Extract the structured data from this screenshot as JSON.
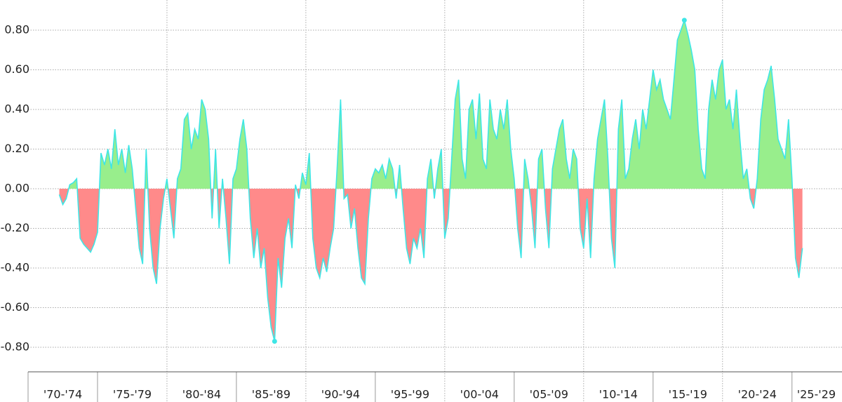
{
  "chart_data": {
    "type": "area",
    "x": [
      1972.25,
      1972.5,
      1972.75,
      1973,
      1973.25,
      1973.5,
      1973.75,
      1974,
      1974.25,
      1974.5,
      1974.75,
      1975,
      1975.25,
      1975.5,
      1975.75,
      1976,
      1976.25,
      1976.5,
      1976.75,
      1977,
      1977.25,
      1977.5,
      1977.75,
      1978,
      1978.25,
      1978.5,
      1978.75,
      1979,
      1979.25,
      1979.5,
      1979.75,
      1980,
      1980.25,
      1980.5,
      1980.75,
      1981,
      1981.25,
      1981.5,
      1981.75,
      1982,
      1982.25,
      1982.5,
      1982.75,
      1983,
      1983.25,
      1983.5,
      1983.75,
      1984,
      1984.25,
      1984.5,
      1984.75,
      1985,
      1985.25,
      1985.5,
      1985.75,
      1986,
      1986.25,
      1986.5,
      1986.75,
      1987,
      1987.25,
      1987.5,
      1987.75,
      1988,
      1988.25,
      1988.5,
      1988.75,
      1989,
      1989.25,
      1989.5,
      1989.75,
      1990,
      1990.25,
      1990.5,
      1990.75,
      1991,
      1991.25,
      1991.5,
      1991.75,
      1992,
      1992.25,
      1992.5,
      1992.75,
      1993,
      1993.25,
      1993.5,
      1993.75,
      1994,
      1994.25,
      1994.5,
      1994.75,
      1995,
      1995.25,
      1995.5,
      1995.75,
      1996,
      1996.25,
      1996.5,
      1996.75,
      1997,
      1997.25,
      1997.5,
      1997.75,
      1998,
      1998.25,
      1998.5,
      1998.75,
      1999,
      1999.25,
      1999.5,
      1999.75,
      2000,
      2000.25,
      2000.5,
      2000.75,
      2001,
      2001.25,
      2001.5,
      2001.75,
      2002,
      2002.25,
      2002.5,
      2002.75,
      2003,
      2003.25,
      2003.5,
      2003.75,
      2004,
      2004.25,
      2004.5,
      2004.75,
      2005,
      2005.25,
      2005.5,
      2005.75,
      2006,
      2006.25,
      2006.5,
      2006.75,
      2007,
      2007.25,
      2007.5,
      2007.75,
      2008,
      2008.25,
      2008.5,
      2008.75,
      2009,
      2009.25,
      2009.5,
      2009.75,
      2010,
      2010.25,
      2010.5,
      2010.75,
      2011,
      2011.25,
      2011.5,
      2011.75,
      2012,
      2012.25,
      2012.5,
      2012.75,
      2013,
      2013.25,
      2013.5,
      2013.75,
      2014,
      2014.25,
      2014.5,
      2014.75,
      2015,
      2015.25,
      2015.5,
      2015.75,
      2016,
      2016.25,
      2016.5,
      2016.75,
      2017,
      2017.25,
      2017.5,
      2017.75,
      2018,
      2018.25,
      2018.5,
      2018.75,
      2019,
      2019.25,
      2019.5,
      2019.75,
      2020,
      2020.25,
      2020.5,
      2020.75,
      2021,
      2021.25,
      2021.5,
      2021.75,
      2022,
      2022.25,
      2022.5,
      2022.75,
      2023,
      2023.25,
      2023.5,
      2023.75,
      2024,
      2024.25,
      2024.5,
      2024.75,
      2025,
      2025.25,
      2025.5,
      2025.75
    ],
    "values": [
      -0.03,
      -0.08,
      -0.05,
      0.02,
      0.03,
      0.05,
      -0.25,
      -0.28,
      -0.3,
      -0.32,
      -0.28,
      -0.22,
      0.18,
      0.12,
      0.2,
      0.1,
      0.3,
      0.12,
      0.2,
      0.08,
      0.22,
      0.1,
      -0.1,
      -0.3,
      -0.38,
      0.2,
      -0.2,
      -0.4,
      -0.48,
      -0.2,
      -0.05,
      0.05,
      -0.1,
      -0.25,
      0.05,
      0.1,
      0.35,
      0.38,
      0.2,
      0.3,
      0.25,
      0.45,
      0.4,
      0.25,
      -0.15,
      0.2,
      -0.2,
      0.05,
      -0.15,
      -0.38,
      0.05,
      0.1,
      0.25,
      0.35,
      0.2,
      -0.15,
      -0.35,
      -0.2,
      -0.4,
      -0.3,
      -0.55,
      -0.7,
      -0.77,
      -0.35,
      -0.5,
      -0.25,
      -0.15,
      -0.3,
      0.02,
      -0.05,
      0.08,
      0.02,
      0.18,
      -0.25,
      -0.4,
      -0.45,
      -0.35,
      -0.42,
      -0.3,
      -0.2,
      0.1,
      0.45,
      -0.05,
      -0.03,
      -0.2,
      -0.1,
      -0.3,
      -0.45,
      -0.48,
      -0.15,
      0.05,
      0.1,
      0.08,
      0.12,
      0.05,
      0.15,
      0.1,
      -0.05,
      0.12,
      -0.1,
      -0.3,
      -0.38,
      -0.25,
      -0.3,
      -0.2,
      -0.35,
      0.05,
      0.15,
      -0.05,
      0.1,
      0.2,
      -0.25,
      -0.15,
      0.15,
      0.45,
      0.55,
      0.15,
      0.05,
      0.4,
      0.45,
      0.25,
      0.48,
      0.15,
      0.1,
      0.45,
      0.3,
      0.25,
      0.4,
      0.3,
      0.45,
      0.2,
      0.05,
      -0.2,
      -0.35,
      0.15,
      0.05,
      -0.1,
      -0.3,
      0.15,
      0.2,
      -0.1,
      -0.3,
      0.1,
      0.2,
      0.3,
      0.35,
      0.15,
      0.05,
      0.2,
      0.15,
      -0.2,
      -0.3,
      -0.05,
      -0.35,
      0.05,
      0.25,
      0.35,
      0.45,
      0.15,
      -0.25,
      -0.4,
      0.3,
      0.45,
      0.05,
      0.1,
      0.25,
      0.35,
      0.2,
      0.4,
      0.3,
      0.45,
      0.6,
      0.5,
      0.55,
      0.45,
      0.4,
      0.35,
      0.55,
      0.75,
      0.8,
      0.85,
      0.78,
      0.7,
      0.6,
      0.3,
      0.1,
      0.05,
      0.4,
      0.55,
      0.45,
      0.6,
      0.65,
      0.4,
      0.45,
      0.3,
      0.5,
      0.25,
      0.05,
      0.1,
      -0.05,
      -0.1,
      0.05,
      0.35,
      0.5,
      0.55,
      0.62,
      0.45,
      0.25,
      0.2,
      0.15,
      0.35,
      0.05,
      -0.35,
      -0.45,
      -0.3
    ],
    "color": "#3ee6e6",
    "positive_color": "#98ee8c",
    "negative_color": "#ff8a8a",
    "xlim": [
      1970,
      2028.5
    ],
    "xticks": [
      {
        "value": 1970,
        "label": "'70-'74"
      },
      {
        "value": 1975,
        "label": "'75-'79"
      },
      {
        "value": 1980,
        "label": "'80-'84"
      },
      {
        "value": 1985,
        "label": "'85-'89"
      },
      {
        "value": 1990,
        "label": "'90-'94"
      },
      {
        "value": 1995,
        "label": "'95-'99"
      },
      {
        "value": 2000,
        "label": "'00-'04"
      },
      {
        "value": 2005,
        "label": "'05-'09"
      },
      {
        "value": 2010,
        "label": "'10-'14"
      },
      {
        "value": 2015,
        "label": "'15-'19"
      },
      {
        "value": 2020,
        "label": "'20-'24"
      },
      {
        "value": 2025,
        "label": "'25-'29"
      }
    ],
    "ylim": [
      -0.924,
      0.952
    ],
    "yticks": [
      {
        "value": -0.8,
        "label": "-0.80"
      },
      {
        "value": -0.6,
        "label": "-0.60"
      },
      {
        "value": -0.4,
        "label": "-0.40"
      },
      {
        "value": -0.2,
        "label": "-0.20"
      },
      {
        "value": 0,
        "label": "0.00"
      },
      {
        "value": 0.2,
        "label": "0.20"
      },
      {
        "value": 0.4,
        "label": "0.40"
      },
      {
        "value": 0.6,
        "label": "0.60"
      },
      {
        "value": 0.8,
        "label": "0.80"
      }
    ],
    "grid": true
  }
}
